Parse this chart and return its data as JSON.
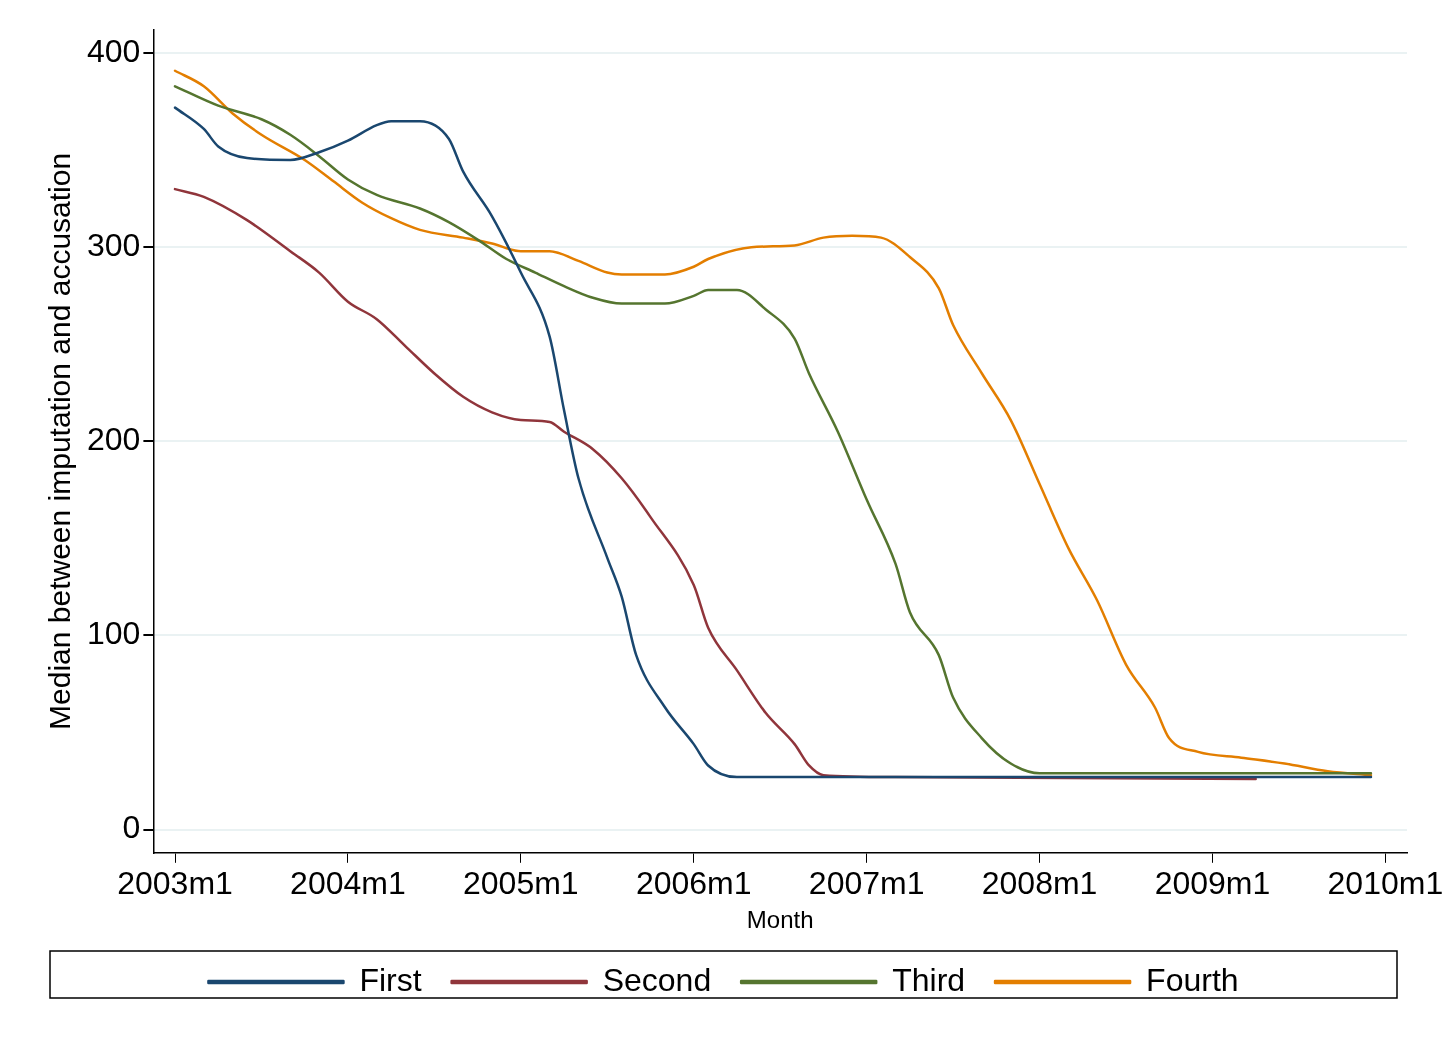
{
  "chart_data": {
    "type": "line",
    "xlabel": "Month",
    "ylabel": "Median between imputation and accusation",
    "xlim": [
      "2002-11-16",
      "2010-02-16"
    ],
    "xticks": [
      {
        "value": "2003-01",
        "label": "2003m1"
      },
      {
        "value": "2004-01",
        "label": "2004m1"
      },
      {
        "value": "2005-01",
        "label": "2005m1"
      },
      {
        "value": "2006-01",
        "label": "2006m1"
      },
      {
        "value": "2007-01",
        "label": "2007m1"
      },
      {
        "value": "2008-01",
        "label": "2008m1"
      },
      {
        "value": "2009-01",
        "label": "2009m1"
      },
      {
        "value": "2010-01",
        "label": "2010m1"
      }
    ],
    "ylim": [
      -12,
      412
    ],
    "yticks": [
      0,
      100,
      200,
      300,
      400
    ],
    "grid": "y",
    "legend": "bottom",
    "marker": "none",
    "line_style": "solid",
    "series": [
      {
        "name": "First",
        "color": "#1a476f",
        "x": [
          "2003-01",
          "2003-03",
          "2003-04",
          "2003-06",
          "2003-09",
          "2003-11",
          "2004-01",
          "2004-03",
          "2004-04",
          "2004-06",
          "2004-08",
          "2004-09",
          "2004-11",
          "2005-01",
          "2005-03",
          "2005-04",
          "2005-05",
          "2005-07",
          "2005-08",
          "2005-09",
          "2005-11",
          "2006-01",
          "2006-02",
          "2006-04",
          "2006-07",
          "2007-01",
          "2009-12"
        ],
        "values": [
          372,
          361,
          352,
          346,
          345,
          349,
          355,
          363,
          365,
          365,
          356,
          339,
          316,
          287,
          254,
          216,
          181,
          140,
          120,
          90,
          63,
          44,
          33,
          27,
          27,
          27,
          27
        ]
      },
      {
        "name": "Second",
        "color": "#90353b",
        "x": [
          "2003-01",
          "2003-03",
          "2003-06",
          "2003-09",
          "2003-11",
          "2004-01",
          "2004-03",
          "2004-05",
          "2004-07",
          "2004-09",
          "2004-11",
          "2005-01",
          "2005-03",
          "2005-04",
          "2005-06",
          "2005-08",
          "2005-10",
          "2006-01",
          "2006-02",
          "2006-04",
          "2006-06",
          "2006-08",
          "2006-09",
          "2006-10",
          "2007-03",
          "2009-04"
        ],
        "values": [
          330,
          326,
          314,
          298,
          287,
          272,
          263,
          249,
          235,
          223,
          215,
          211,
          210,
          205,
          196,
          181,
          161,
          126,
          104,
          82,
          60,
          44,
          33,
          28,
          27,
          26
        ]
      },
      {
        "name": "Third",
        "color": "#55752f",
        "x": [
          "2003-01",
          "2003-04",
          "2003-07",
          "2003-09",
          "2003-11",
          "2004-01",
          "2004-03",
          "2004-06",
          "2004-08",
          "2004-10",
          "2004-12",
          "2005-02",
          "2005-04",
          "2005-06",
          "2005-08",
          "2005-11",
          "2006-01",
          "2006-02",
          "2006-04",
          "2006-06",
          "2006-08",
          "2006-09",
          "2006-11",
          "2007-01",
          "2007-03",
          "2007-04",
          "2007-06",
          "2007-07",
          "2007-09",
          "2007-11",
          "2008-01",
          "2008-12",
          "2009-12"
        ],
        "values": [
          383,
          373,
          366,
          358,
          347,
          335,
          327,
          320,
          313,
          304,
          294,
          287,
          280,
          274,
          271,
          271,
          275,
          278,
          278,
          268,
          253,
          235,
          205,
          170,
          137,
          112,
          90,
          68,
          47,
          34,
          29,
          29,
          29
        ]
      },
      {
        "name": "Fourth",
        "color": "#e37e00",
        "x": [
          "2003-01",
          "2003-03",
          "2003-05",
          "2003-07",
          "2003-10",
          "2003-12",
          "2004-02",
          "2004-04",
          "2004-06",
          "2004-09",
          "2004-11",
          "2005-01",
          "2005-03",
          "2005-05",
          "2005-07",
          "2005-08",
          "2005-11",
          "2006-01",
          "2006-02",
          "2006-05",
          "2006-08",
          "2006-10",
          "2006-12",
          "2007-02",
          "2007-04",
          "2007-06",
          "2007-07",
          "2007-09",
          "2007-11",
          "2008-01",
          "2008-03",
          "2008-05",
          "2008-07",
          "2008-09",
          "2008-10",
          "2008-12",
          "2009-03",
          "2009-06",
          "2009-09",
          "2009-12"
        ],
        "values": [
          391,
          383,
          369,
          358,
          345,
          334,
          323,
          315,
          309,
          305,
          302,
          298,
          298,
          293,
          287,
          286,
          286,
          290,
          294,
          300,
          301,
          305,
          306,
          305,
          295,
          279,
          260,
          235,
          211,
          178,
          145,
          118,
          85,
          63,
          47,
          40,
          37,
          34,
          30,
          28
        ]
      }
    ]
  }
}
